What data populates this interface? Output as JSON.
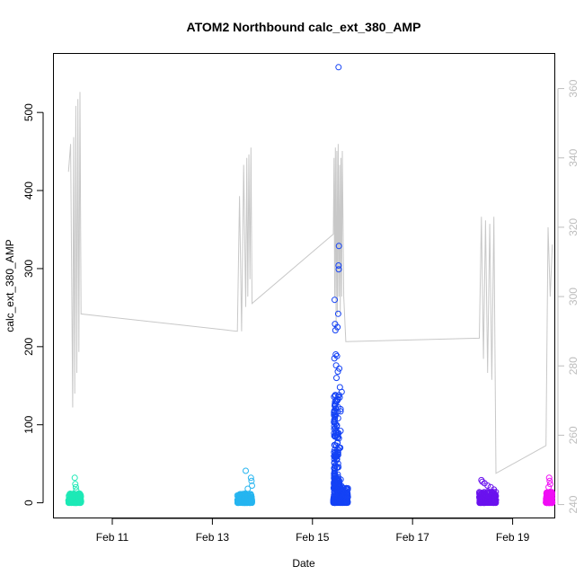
{
  "chart_data": {
    "type": "scatter",
    "title": "ATOM2 Northbound calc_ext_380_AMP",
    "xlabel": "Date",
    "ylabel": "calc_ext_380_AMP",
    "xlim": [
      "2023-02-09 20:00",
      "2023-02-19 20:00"
    ],
    "ylim": [
      -20,
      575
    ],
    "y2lim": [
      236,
      370
    ],
    "x_tick_labels": [
      {
        "label": "Feb 11",
        "date": "2023-02-11"
      },
      {
        "label": "Feb 13",
        "date": "2023-02-13"
      },
      {
        "label": "Feb 15",
        "date": "2023-02-15"
      },
      {
        "label": "Feb 17",
        "date": "2023-02-17"
      },
      {
        "label": "Feb 19",
        "date": "2023-02-19"
      }
    ],
    "y_ticks": [
      0,
      100,
      200,
      300,
      400,
      500
    ],
    "y2_ticks": [
      240,
      260,
      280,
      300,
      320,
      340,
      360
    ],
    "grid": false,
    "colors": {
      "axis": "#000000",
      "secondary_axis": "#bdbdbd",
      "line": "#c8c8c8"
    },
    "scatter_groups": [
      {
        "color": "#1de9b6",
        "start": "2023-02-10 03:00",
        "end": "2023-02-10 09:00",
        "base_max": 12,
        "peaks": [
          {
            "x": "2023-02-10 06:00",
            "y": 32
          },
          {
            "x": "2023-02-10 06:15",
            "y": 24
          },
          {
            "x": "2023-02-10 06:30",
            "y": 20
          },
          {
            "x": "2023-02-10 06:45",
            "y": 16
          }
        ]
      },
      {
        "color": "#26b5f0",
        "start": "2023-02-13 12:00",
        "end": "2023-02-13 19:00",
        "base_max": 12,
        "peaks": [
          {
            "x": "2023-02-13 16:00",
            "y": 41
          },
          {
            "x": "2023-02-13 18:30",
            "y": 32
          },
          {
            "x": "2023-02-13 18:45",
            "y": 28
          },
          {
            "x": "2023-02-13 19:00",
            "y": 22
          },
          {
            "x": "2023-02-13 17:00",
            "y": 18
          }
        ]
      },
      {
        "color": "#1442f5",
        "start": "2023-02-15 10:00",
        "end": "2023-02-15 17:00",
        "base_max": 20,
        "peaks": [
          {
            "x": "2023-02-15 12:30",
            "y": 558
          },
          {
            "x": "2023-02-15 12:40",
            "y": 329
          },
          {
            "x": "2023-02-15 12:30",
            "y": 304
          },
          {
            "x": "2023-02-15 12:35",
            "y": 299
          },
          {
            "x": "2023-02-15 10:40",
            "y": 260
          },
          {
            "x": "2023-02-15 12:20",
            "y": 242
          },
          {
            "x": "2023-02-15 10:50",
            "y": 229
          },
          {
            "x": "2023-02-15 12:00",
            "y": 225
          },
          {
            "x": "2023-02-15 11:00",
            "y": 221
          },
          {
            "x": "2023-02-15 11:10",
            "y": 190
          },
          {
            "x": "2023-02-15 11:45",
            "y": 188
          },
          {
            "x": "2023-02-15 10:30",
            "y": 185
          },
          {
            "x": "2023-02-15 11:20",
            "y": 176
          },
          {
            "x": "2023-02-15 12:50",
            "y": 172
          },
          {
            "x": "2023-02-15 12:10",
            "y": 168
          },
          {
            "x": "2023-02-15 11:30",
            "y": 160
          },
          {
            "x": "2023-02-15 13:10",
            "y": 148
          },
          {
            "x": "2023-02-15 14:00",
            "y": 142
          },
          {
            "x": "2023-02-15 12:45",
            "y": 138
          },
          {
            "x": "2023-02-15 13:30",
            "y": 120
          }
        ],
        "cloud": {
          "start": "2023-02-15 10:20",
          "end": "2023-02-15 14:20",
          "min": 20,
          "max": 140,
          "count": 160
        }
      },
      {
        "color": "#6a12ee",
        "start": "2023-02-18 08:00",
        "end": "2023-02-18 16:00",
        "base_max": 14,
        "peaks": [
          {
            "x": "2023-02-18 09:00",
            "y": 29
          },
          {
            "x": "2023-02-18 09:30",
            "y": 27
          },
          {
            "x": "2023-02-18 10:30",
            "y": 25
          },
          {
            "x": "2023-02-18 12:00",
            "y": 22
          },
          {
            "x": "2023-02-18 13:30",
            "y": 20
          },
          {
            "x": "2023-02-18 15:00",
            "y": 17
          }
        ]
      },
      {
        "color": "#f00ff5",
        "start": "2023-02-19 16:00",
        "end": "2023-02-19 19:00",
        "base_max": 14,
        "peaks": [
          {
            "x": "2023-02-19 17:30",
            "y": 32
          },
          {
            "x": "2023-02-19 17:45",
            "y": 28
          },
          {
            "x": "2023-02-19 18:00",
            "y": 24
          },
          {
            "x": "2023-02-19 17:15",
            "y": 20
          }
        ]
      }
    ],
    "line_series": {
      "axis": "secondary",
      "points": [
        {
          "x": "2023-02-10 03:00",
          "y": 336
        },
        {
          "x": "2023-02-10 04:00",
          "y": 344
        },
        {
          "x": "2023-02-10 05:00",
          "y": 268
        },
        {
          "x": "2023-02-10 05:30",
          "y": 346
        },
        {
          "x": "2023-02-10 06:00",
          "y": 272
        },
        {
          "x": "2023-02-10 06:30",
          "y": 355
        },
        {
          "x": "2023-02-10 07:00",
          "y": 278
        },
        {
          "x": "2023-02-10 07:30",
          "y": 357
        },
        {
          "x": "2023-02-10 08:00",
          "y": 284
        },
        {
          "x": "2023-02-10 08:30",
          "y": 359
        },
        {
          "x": "2023-02-10 09:00",
          "y": 295
        },
        {
          "x": "2023-02-13 12:00",
          "y": 290
        },
        {
          "x": "2023-02-13 13:00",
          "y": 329
        },
        {
          "x": "2023-02-13 14:00",
          "y": 290
        },
        {
          "x": "2023-02-13 15:00",
          "y": 338
        },
        {
          "x": "2023-02-13 16:00",
          "y": 297
        },
        {
          "x": "2023-02-13 16:30",
          "y": 340
        },
        {
          "x": "2023-02-13 17:00",
          "y": 300
        },
        {
          "x": "2023-02-13 17:30",
          "y": 341
        },
        {
          "x": "2023-02-13 18:00",
          "y": 305
        },
        {
          "x": "2023-02-13 18:30",
          "y": 343
        },
        {
          "x": "2023-02-13 19:00",
          "y": 298
        },
        {
          "x": "2023-02-15 10:00",
          "y": 318
        },
        {
          "x": "2023-02-15 10:20",
          "y": 340
        },
        {
          "x": "2023-02-15 10:40",
          "y": 300
        },
        {
          "x": "2023-02-15 11:00",
          "y": 343
        },
        {
          "x": "2023-02-15 11:20",
          "y": 290
        },
        {
          "x": "2023-02-15 11:40",
          "y": 342
        },
        {
          "x": "2023-02-15 12:00",
          "y": 295
        },
        {
          "x": "2023-02-15 12:20",
          "y": 344
        },
        {
          "x": "2023-02-15 12:40",
          "y": 300
        },
        {
          "x": "2023-02-15 13:00",
          "y": 338
        },
        {
          "x": "2023-02-15 13:20",
          "y": 295
        },
        {
          "x": "2023-02-15 13:40",
          "y": 340
        },
        {
          "x": "2023-02-15 14:00",
          "y": 300
        },
        {
          "x": "2023-02-15 14:20",
          "y": 342
        },
        {
          "x": "2023-02-15 15:00",
          "y": 300
        },
        {
          "x": "2023-02-15 16:00",
          "y": 287
        },
        {
          "x": "2023-02-18 08:00",
          "y": 288
        },
        {
          "x": "2023-02-18 09:00",
          "y": 323
        },
        {
          "x": "2023-02-18 10:00",
          "y": 282
        },
        {
          "x": "2023-02-18 11:00",
          "y": 322
        },
        {
          "x": "2023-02-18 12:00",
          "y": 278
        },
        {
          "x": "2023-02-18 13:00",
          "y": 321
        },
        {
          "x": "2023-02-18 14:00",
          "y": 276
        },
        {
          "x": "2023-02-18 15:00",
          "y": 323
        },
        {
          "x": "2023-02-18 16:00",
          "y": 249
        },
        {
          "x": "2023-02-19 16:00",
          "y": 257
        },
        {
          "x": "2023-02-19 17:00",
          "y": 320
        },
        {
          "x": "2023-02-19 18:00",
          "y": 300
        },
        {
          "x": "2023-02-19 19:00",
          "y": 315
        }
      ]
    }
  }
}
